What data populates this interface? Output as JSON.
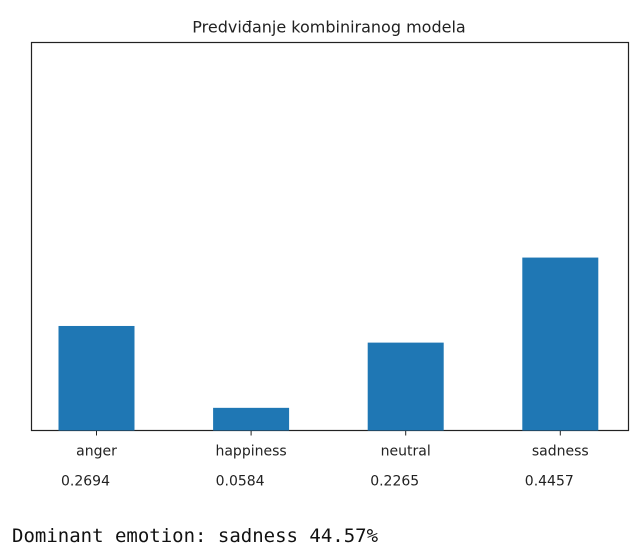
{
  "chart_data": {
    "type": "bar",
    "title": "Predviđanje kombiniranog modela",
    "categories": [
      "anger",
      "happiness",
      "neutral",
      "sadness"
    ],
    "values": [
      0.2694,
      0.0584,
      0.2265,
      0.4457
    ],
    "color": "#1f77b4",
    "ylim": [
      0,
      1
    ]
  },
  "output_text": "Dominant emotion: sadness 44.57%"
}
